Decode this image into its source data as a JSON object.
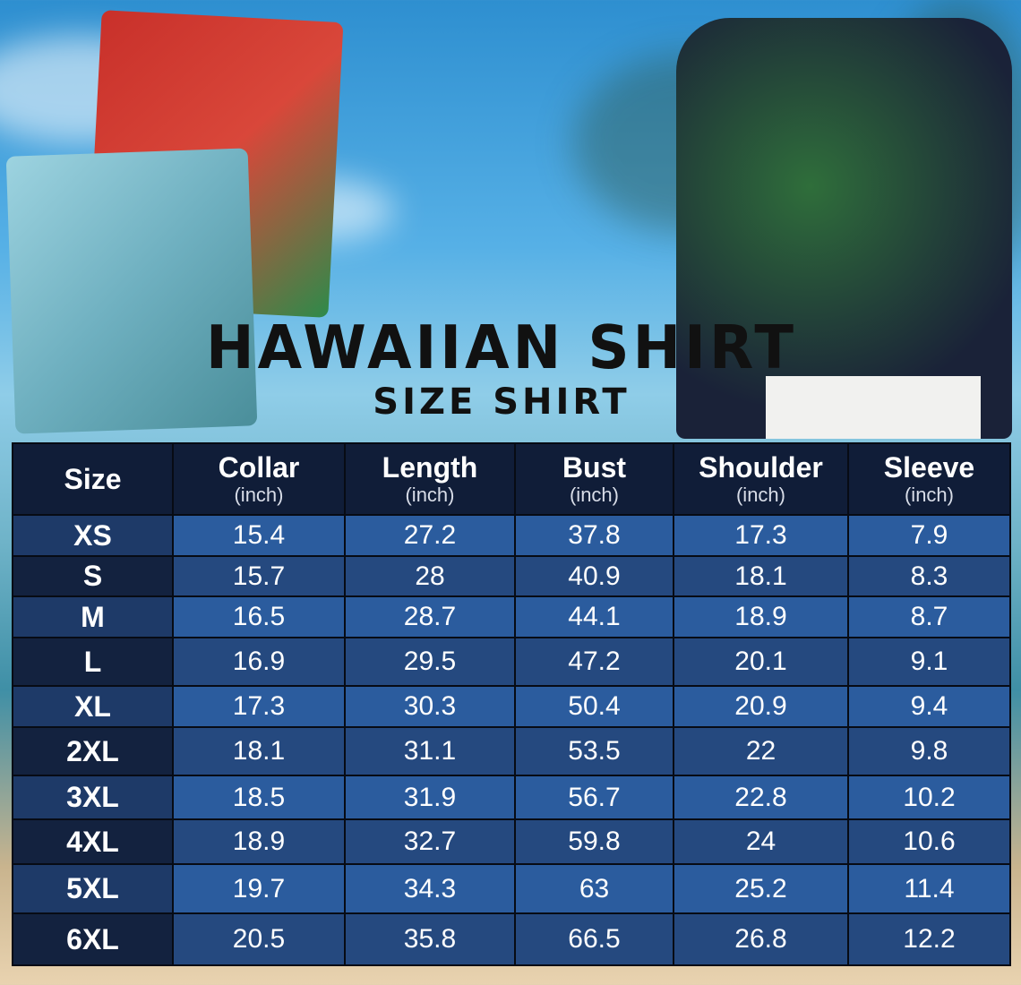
{
  "title": "HAWAIIAN SHIRT",
  "subtitle": "SIZE SHIRT",
  "table": {
    "headers": [
      {
        "label": "Size",
        "unit": ""
      },
      {
        "label": "Collar",
        "unit": "(inch)"
      },
      {
        "label": "Length",
        "unit": "(inch)"
      },
      {
        "label": "Bust",
        "unit": "(inch)"
      },
      {
        "label": "Shoulder",
        "unit": "(inch)"
      },
      {
        "label": "Sleeve",
        "unit": "(inch)"
      }
    ],
    "rows": [
      [
        "XS",
        "15.4",
        "27.2",
        "37.8",
        "17.3",
        "7.9"
      ],
      [
        "S",
        "15.7",
        "28",
        "40.9",
        "18.1",
        "8.3"
      ],
      [
        "M",
        "16.5",
        "28.7",
        "44.1",
        "18.9",
        "8.7"
      ],
      [
        "L",
        "16.9",
        "29.5",
        "47.2",
        "20.1",
        "9.1"
      ],
      [
        "XL",
        "17.3",
        "30.3",
        "50.4",
        "20.9",
        "9.4"
      ],
      [
        "2XL",
        "18.1",
        "31.1",
        "53.5",
        "22",
        "9.8"
      ],
      [
        "3XL",
        "18.5",
        "31.9",
        "56.7",
        "22.8",
        "10.2"
      ],
      [
        "4XL",
        "18.9",
        "32.7",
        "59.8",
        "24",
        "10.6"
      ],
      [
        "5XL",
        "19.7",
        "34.3",
        "63",
        "25.2",
        "11.4"
      ],
      [
        "6XL",
        "20.5",
        "35.8",
        "66.5",
        "26.8",
        "12.2"
      ]
    ]
  },
  "colors": {
    "header": "#101d38",
    "row_light": "#2b5c9e",
    "row_dark": "#25497f"
  }
}
